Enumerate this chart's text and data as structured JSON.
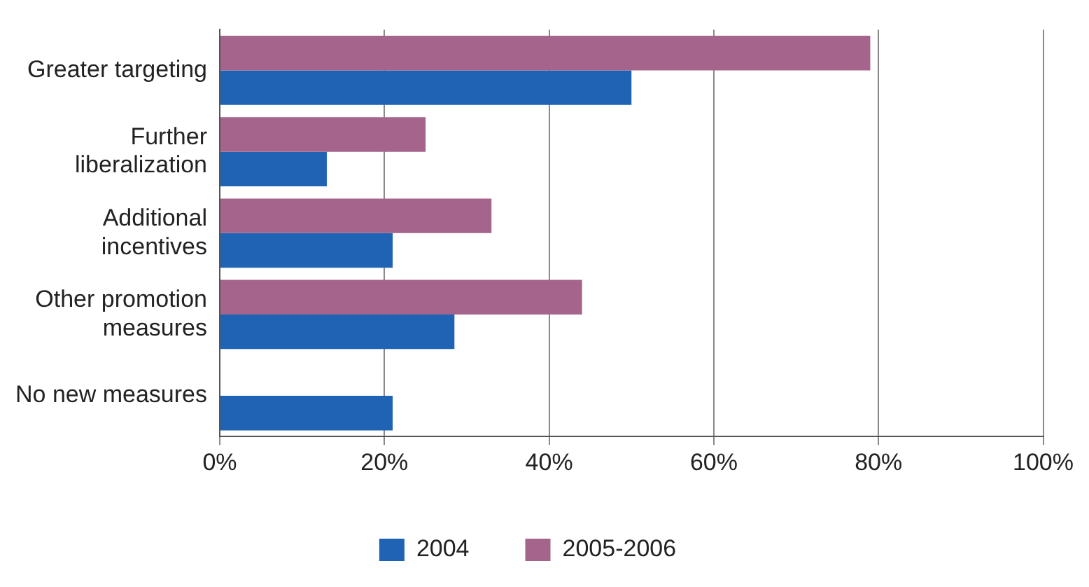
{
  "chart_data": {
    "type": "bar",
    "orientation": "horizontal",
    "categories": [
      "Greater targeting",
      "Further liberalization",
      "Additional incentives",
      "Other promotion measures",
      "No new measures"
    ],
    "series": [
      {
        "name": "2004",
        "color": "#1f64b4",
        "values": [
          50,
          13,
          21,
          28.5,
          21
        ]
      },
      {
        "name": "2005-2006",
        "color": "#a4648c",
        "values": [
          79,
          25,
          33,
          44,
          null
        ]
      }
    ],
    "xlim": [
      0,
      100
    ],
    "xticks": [
      {
        "value": 0,
        "label": "0%"
      },
      {
        "value": 20,
        "label": "20%"
      },
      {
        "value": 40,
        "label": "40%"
      },
      {
        "value": 60,
        "label": "60%"
      },
      {
        "value": 80,
        "label": "80%"
      },
      {
        "value": 100,
        "label": "100%"
      }
    ],
    "grid": "x",
    "legend": "bottom"
  }
}
